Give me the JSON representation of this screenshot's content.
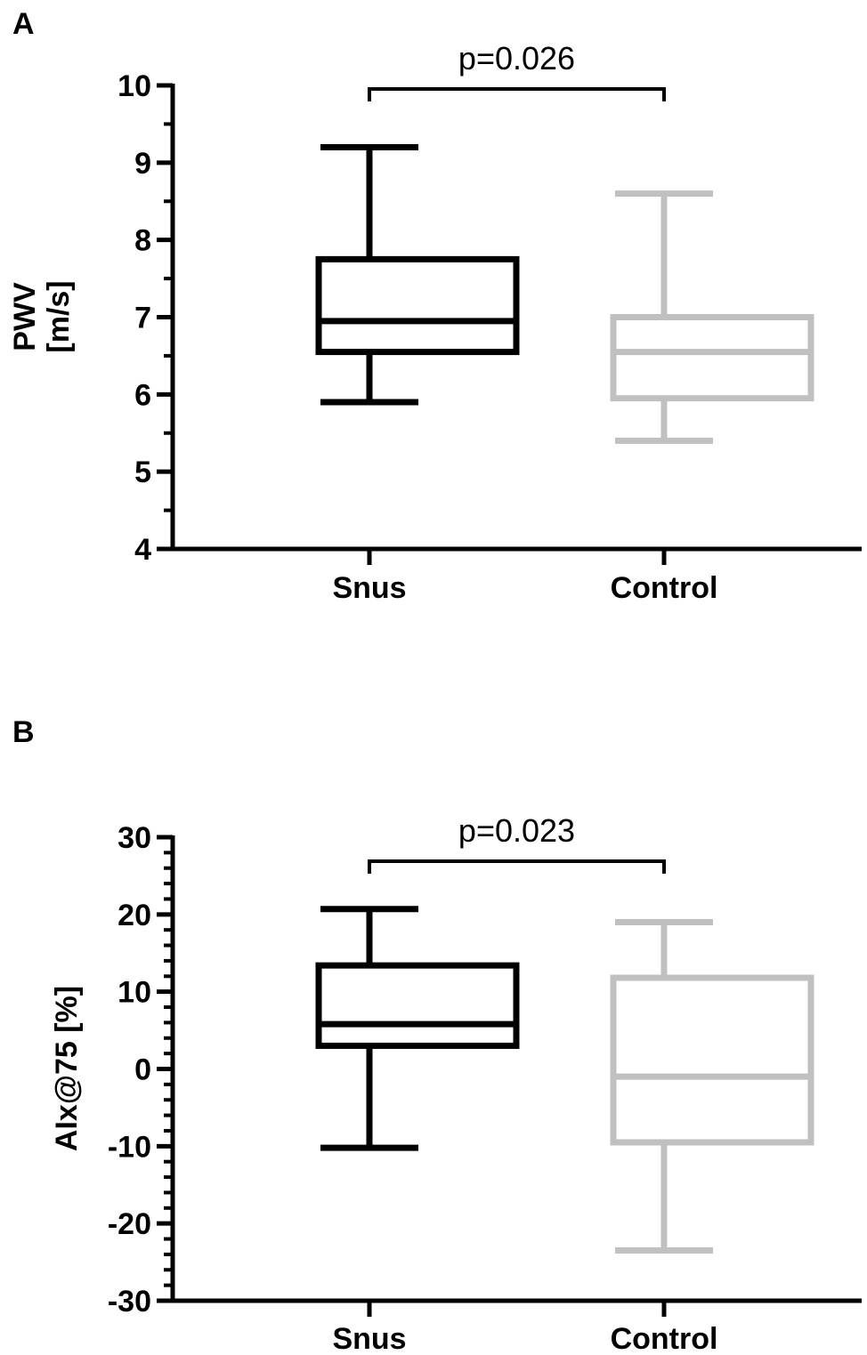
{
  "chart_data": [
    {
      "panel": "A",
      "type": "box",
      "ylabel_lines": [
        "PWV",
        "[m/s]"
      ],
      "ylim": [
        4,
        10
      ],
      "yticks": [
        4,
        5,
        6,
        7,
        8,
        9,
        10
      ],
      "ytick_labels": [
        "4",
        "5",
        "6",
        "7",
        "8",
        "9",
        "10"
      ],
      "minor_ticks_per_major": 1,
      "categories": [
        "Snus",
        "Control"
      ],
      "colors": [
        "#000000",
        "#c0c0c0"
      ],
      "boxes": [
        {
          "name": "Snus",
          "min": 5.9,
          "q1": 6.55,
          "median": 6.95,
          "q3": 7.75,
          "max": 9.2
        },
        {
          "name": "Control",
          "min": 5.4,
          "q1": 5.95,
          "median": 6.55,
          "q3": 7.0,
          "max": 8.6
        }
      ],
      "annotation": "p=0.026"
    },
    {
      "panel": "B",
      "type": "box",
      "ylabel_lines": [
        "AIx@75 [%]"
      ],
      "ylim": [
        -30,
        30
      ],
      "yticks": [
        -30,
        -20,
        -10,
        0,
        10,
        20,
        30
      ],
      "ytick_labels": [
        "-30",
        "-20",
        "-10",
        "0",
        "10",
        "20",
        "30"
      ],
      "minor_ticks_per_major": 4,
      "categories": [
        "Snus",
        "Control"
      ],
      "colors": [
        "#000000",
        "#c0c0c0"
      ],
      "boxes": [
        {
          "name": "Snus",
          "min": -10.2,
          "q1": 3.0,
          "median": 5.8,
          "q3": 13.4,
          "max": 20.7
        },
        {
          "name": "Control",
          "min": -23.5,
          "q1": -9.5,
          "median": -1.0,
          "q3": 11.8,
          "max": 19.0
        }
      ],
      "annotation": "p=0.023"
    }
  ]
}
